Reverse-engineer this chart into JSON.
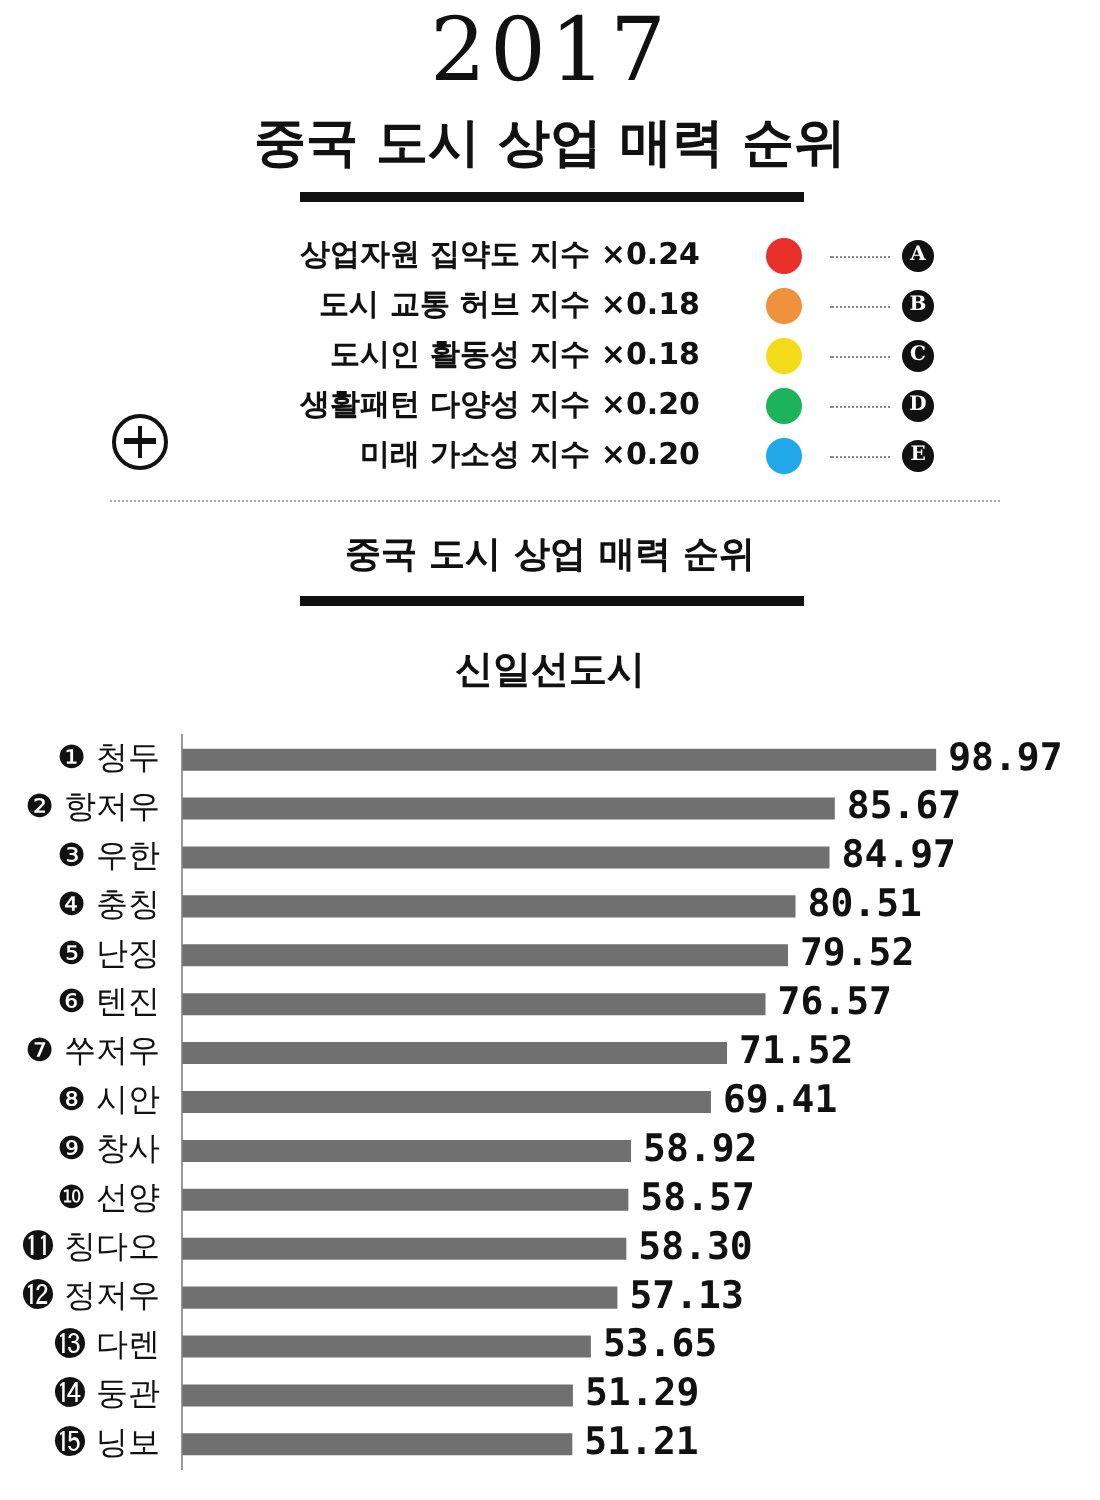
{
  "chart_data": {
    "type": "bar",
    "orientation": "horizontal",
    "title": "중국 도시 상업 매력 순위",
    "subtitle": "신일선도시",
    "annotations": [
      "2017",
      "상업자원 집약도 지수 ×0.24",
      "A",
      "도시 교통 허브 지수 ×0.18",
      "B",
      "도시인 활동성 지수 ×0.18",
      "C",
      "생활패턴 다양성 지수 ×0.20",
      "D",
      "미래 가소성 지수 ×0.20",
      "E",
      "중국 도시 상업 매력 순위"
    ],
    "categories": [
      "❶ 청두",
      "❷ 항저우",
      "❸ 우한",
      "❹ 충칭",
      "❺ 난징",
      "❻ 텐진",
      "❼ 쑤저우",
      "❽ 시안",
      "❾ 창사",
      "❿ 선양",
      "⓫ 칭다오",
      "⓬ 정저우",
      "⓭ 다렌",
      "⓮ 둥관",
      "⓯ 닝보"
    ],
    "values": [
      98.97,
      85.67,
      84.97,
      80.51,
      79.52,
      76.57,
      71.52,
      69.41,
      58.92,
      58.57,
      58.3,
      57.13,
      53.65,
      51.29,
      51.21
    ],
    "value_labels": [
      "98.97",
      "85.67",
      "84.97",
      "80.51",
      "79.52",
      "76.57",
      "71.52",
      "69.41",
      "58.92",
      "58.57",
      "58.30",
      "57.13",
      "53.65",
      "51.29",
      "51.21"
    ],
    "color": "#707070",
    "grid": false,
    "legend": false,
    "tick_labels": "y"
  }
}
